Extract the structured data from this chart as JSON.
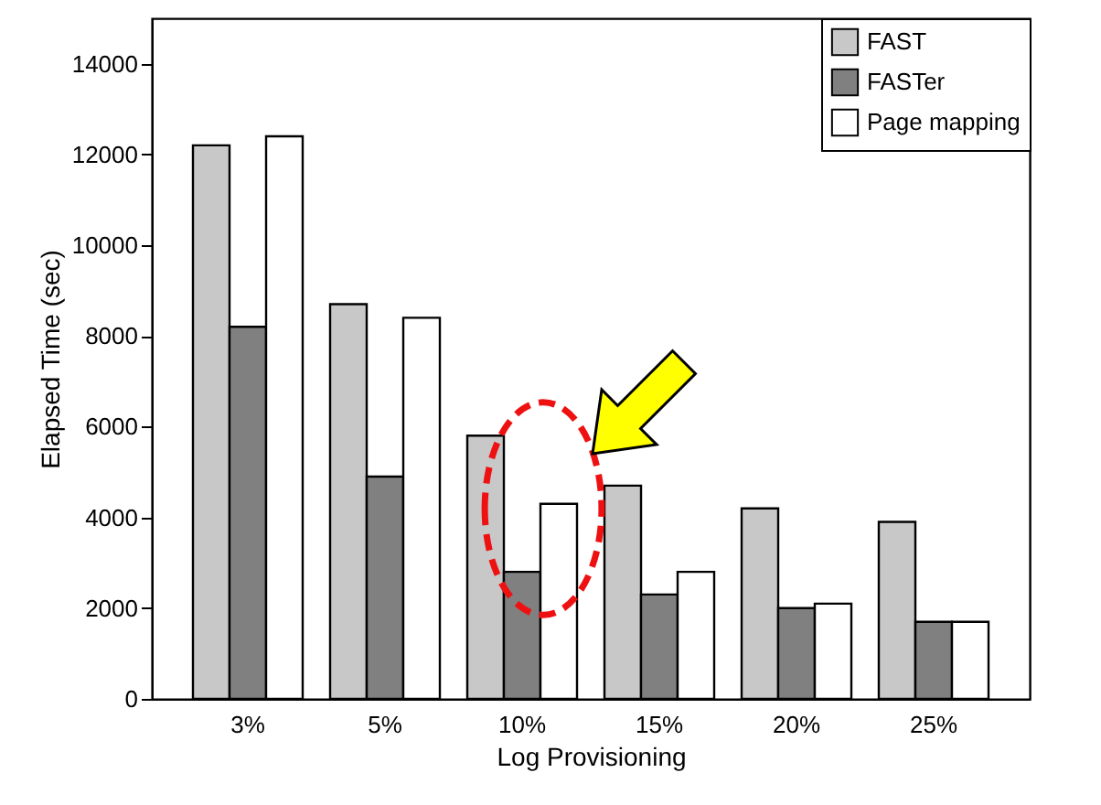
{
  "chart_data": {
    "type": "bar",
    "xlabel": "Log Provisioning",
    "ylabel": "Elapsed Time (sec)",
    "categories": [
      "3%",
      "5%",
      "10%",
      "15%",
      "20%",
      "25%"
    ],
    "series": [
      {
        "name": "FAST",
        "color": "#c8c8c8",
        "values": [
          12200,
          8700,
          5800,
          4700,
          4200,
          3900
        ]
      },
      {
        "name": "FASTer",
        "color": "#808080",
        "values": [
          8200,
          4900,
          2800,
          2300,
          2000,
          1700
        ]
      },
      {
        "name": "Page mapping",
        "color": "#ffffff",
        "values": [
          12400,
          8400,
          4300,
          2800,
          2100,
          1700
        ]
      }
    ],
    "ylim": [
      0,
      15000
    ],
    "yticks": [
      0,
      2000,
      4000,
      6000,
      8000,
      10000,
      12000,
      14000
    ],
    "grid": false,
    "legend": "top right"
  }
}
